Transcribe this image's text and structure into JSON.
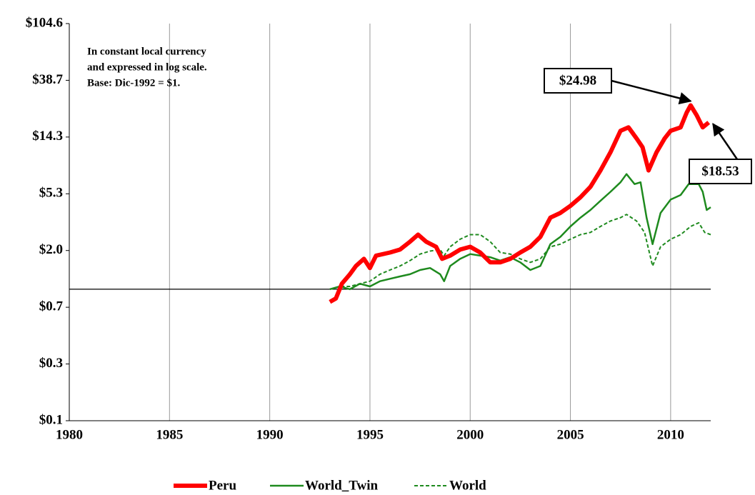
{
  "chart_data": {
    "type": "line",
    "log_y": true,
    "note": [
      "In constant local currency",
      "and expressed in log scale.",
      "Base: Dic-1992 = $1."
    ],
    "xlim": [
      1980,
      2012
    ],
    "xticks": [
      1980,
      1985,
      1990,
      1995,
      2000,
      2005,
      2010
    ],
    "ylim": [
      0.1,
      104.604
    ],
    "yticks": [
      {
        "value": 0.1,
        "label": "$0.1"
      },
      {
        "value": 0.27,
        "label": "$0.3"
      },
      {
        "value": 0.729,
        "label": "$0.7"
      },
      {
        "value": 1.968,
        "label": "$2.0"
      },
      {
        "value": 5.314,
        "label": "$5.3"
      },
      {
        "value": 14.349,
        "label": "$14.3"
      },
      {
        "value": 38.742,
        "label": "$38.7"
      },
      {
        "value": 104.604,
        "label": "$104.6"
      }
    ],
    "x_grid": true,
    "reference_line": 1,
    "legend": "bottom",
    "series": [
      {
        "name": "Peru",
        "color": "#ff0000",
        "style": "solid",
        "x": [
          1993.0,
          1993.3,
          1993.6,
          1994.0,
          1994.3,
          1994.7,
          1995.0,
          1995.3,
          1996.0,
          1996.5,
          1997.0,
          1997.4,
          1997.8,
          1998.3,
          1998.6,
          1999.0,
          1999.5,
          2000.0,
          2000.5,
          2001.0,
          2001.5,
          2002.0,
          2002.5,
          2003.0,
          2003.5,
          2004.0,
          2004.5,
          2005.0,
          2005.5,
          2006.0,
          2006.5,
          2007.0,
          2007.5,
          2007.9,
          2008.3,
          2008.6,
          2008.9,
          2009.3,
          2009.7,
          2010.0,
          2010.5,
          2010.8,
          2011.0,
          2011.3,
          2011.6,
          2011.9
        ],
        "values": [
          0.8,
          0.85,
          1.1,
          1.3,
          1.5,
          1.7,
          1.45,
          1.8,
          1.9,
          2.0,
          2.3,
          2.6,
          2.3,
          2.1,
          1.7,
          1.8,
          2.0,
          2.1,
          1.9,
          1.6,
          1.6,
          1.7,
          1.9,
          2.1,
          2.5,
          3.5,
          3.8,
          4.3,
          5.0,
          6.0,
          8.0,
          11,
          16,
          17,
          14,
          12,
          8.0,
          11,
          14,
          16,
          17,
          22,
          24.98,
          21,
          17,
          18.53
        ]
      },
      {
        "name": "World_Twin",
        "color": "#1e8a1e",
        "style": "solid",
        "x": [
          1993.0,
          1993.5,
          1994.0,
          1994.5,
          1995.0,
          1995.5,
          1996.0,
          1996.5,
          1997.0,
          1997.5,
          1998.0,
          1998.5,
          1998.7,
          1999.0,
          1999.5,
          2000.0,
          2000.5,
          2001.0,
          2001.5,
          2002.0,
          2002.5,
          2003.0,
          2003.5,
          2004.0,
          2004.5,
          2005.0,
          2005.5,
          2006.0,
          2006.5,
          2007.0,
          2007.5,
          2007.8,
          2008.2,
          2008.5,
          2008.8,
          2009.1,
          2009.5,
          2010.0,
          2010.5,
          2010.9,
          2011.4,
          2011.6,
          2011.8,
          2012.0
        ],
        "values": [
          1.0,
          1.05,
          1.0,
          1.1,
          1.05,
          1.15,
          1.2,
          1.25,
          1.3,
          1.4,
          1.45,
          1.3,
          1.15,
          1.5,
          1.7,
          1.85,
          1.8,
          1.75,
          1.65,
          1.75,
          1.6,
          1.4,
          1.5,
          2.2,
          2.5,
          3.0,
          3.5,
          4.0,
          4.7,
          5.5,
          6.5,
          7.5,
          6.3,
          6.5,
          3.5,
          2.2,
          3.8,
          4.8,
          5.2,
          6.3,
          6.3,
          5.5,
          4.0,
          4.2
        ]
      },
      {
        "name": "World",
        "color": "#1e8a1e",
        "style": "dashed",
        "x": [
          1993.0,
          1993.5,
          1994.0,
          1994.5,
          1995.0,
          1995.5,
          1996.0,
          1996.5,
          1997.0,
          1997.5,
          1998.0,
          1998.5,
          1998.7,
          1999.0,
          1999.5,
          2000.0,
          2000.5,
          2001.0,
          2001.5,
          2002.0,
          2002.5,
          2003.0,
          2003.5,
          2004.0,
          2004.5,
          2005.0,
          2005.5,
          2006.0,
          2006.5,
          2007.0,
          2007.5,
          2007.8,
          2008.3,
          2008.7,
          2009.1,
          2009.5,
          2010.0,
          2010.5,
          2011.0,
          2011.4,
          2011.7,
          2012.0
        ],
        "values": [
          1.0,
          1.05,
          1.05,
          1.1,
          1.15,
          1.3,
          1.4,
          1.5,
          1.65,
          1.85,
          1.95,
          2.0,
          1.8,
          2.1,
          2.4,
          2.6,
          2.6,
          2.3,
          1.9,
          1.85,
          1.7,
          1.6,
          1.7,
          2.1,
          2.2,
          2.4,
          2.6,
          2.7,
          3.0,
          3.3,
          3.5,
          3.7,
          3.3,
          2.7,
          1.5,
          2.1,
          2.4,
          2.6,
          3.0,
          3.2,
          2.7,
          2.6
        ]
      }
    ],
    "annotations": [
      {
        "label": "$24.98",
        "x": 2011.0,
        "value": 24.98
      },
      {
        "label": "$18.53",
        "x": 2011.9,
        "value": 18.53
      }
    ]
  }
}
